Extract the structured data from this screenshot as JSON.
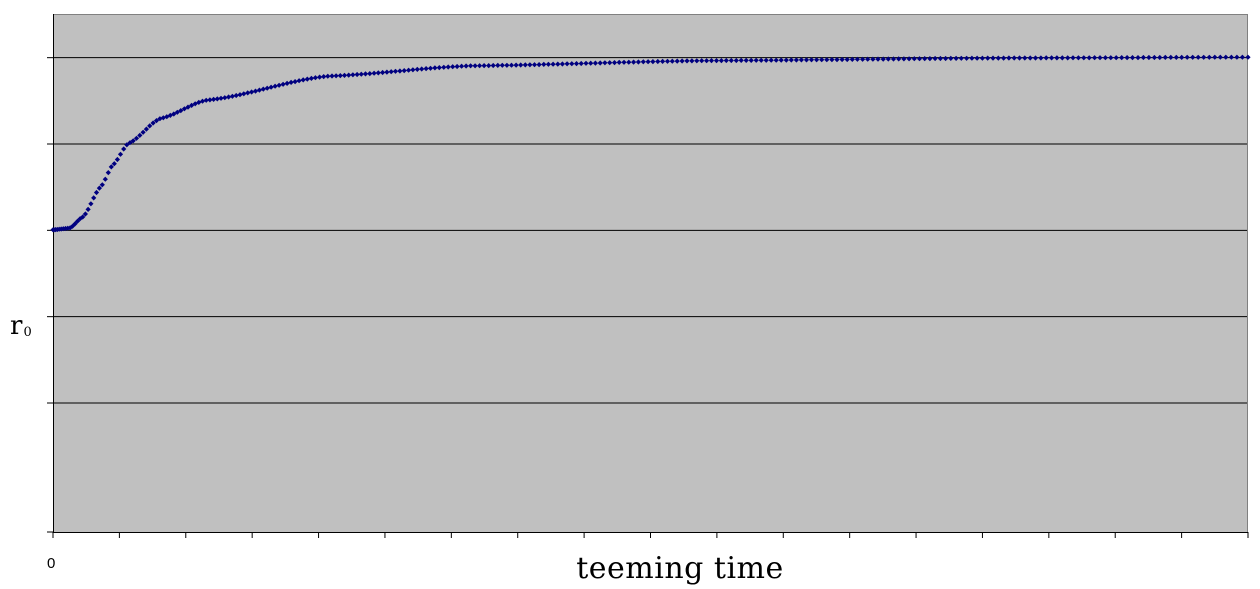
{
  "chart_data": {
    "type": "scatter",
    "title": "",
    "xlabel": "teeming time",
    "ylabel": "r",
    "ylabel_subscript": "0",
    "x_tick_labels": [
      "0"
    ],
    "y_tick_labels": [],
    "grid": true,
    "legend": "none",
    "colors": {
      "plot_bg": "#c0c0c0",
      "marker": "#000080",
      "grid": "#000000"
    },
    "xlim": [
      0,
      1
    ],
    "ylim": [
      -3.5,
      2.5
    ],
    "series": [
      {
        "shape": "rise-then-saturate",
        "x_range": [
          0,
          1
        ],
        "start": 0,
        "plateau": 2,
        "curve_pair": [
          [
            0.0,
            0.0
          ],
          [
            0.014,
            0.02
          ],
          [
            0.025,
            0.15
          ],
          [
            0.04,
            0.5
          ],
          [
            0.05,
            0.75
          ],
          [
            0.063,
            1.0
          ],
          [
            0.09,
            1.29
          ],
          [
            0.128,
            1.5
          ],
          [
            0.23,
            1.78
          ],
          [
            0.35,
            1.9
          ],
          [
            0.55,
            1.96
          ],
          [
            0.8,
            1.99
          ],
          [
            1.0,
            2.0
          ]
        ],
        "point_count": 270
      }
    ]
  }
}
